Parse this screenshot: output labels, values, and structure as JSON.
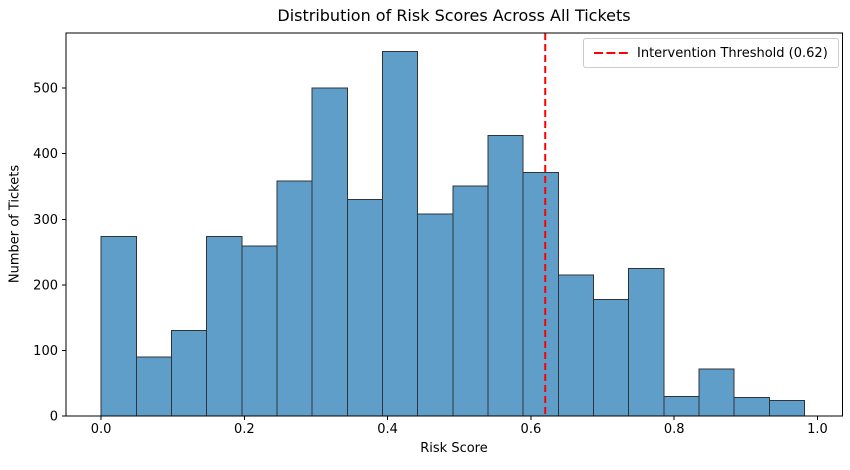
{
  "figure": {
    "title": "Distribution of Risk Scores Across All Tickets",
    "xlabel": "Risk Score",
    "ylabel": "Number of Tickets"
  },
  "legend": {
    "label": "Intervention Threshold (0.62)",
    "line_color": "#ff0000",
    "line_style": "dashed"
  },
  "colors": {
    "bar_fill": "#5f9ec9",
    "bar_edge": "#303438",
    "threshold_line": "#ff0000",
    "axis": "#000000",
    "tick_label": "#000000",
    "background": "#ffffff",
    "legend_border": "#cccccc"
  },
  "chart_data": {
    "type": "bar",
    "subtype": "histogram",
    "title": "Distribution of Risk Scores Across All Tickets",
    "xlabel": "Risk Score",
    "ylabel": "Number of Tickets",
    "bin_start": 0.0,
    "bin_width": 0.0491,
    "counts": [
      274,
      90,
      130,
      274,
      259,
      358,
      500,
      330,
      556,
      308,
      351,
      428,
      371,
      215,
      178,
      225,
      30,
      72,
      28,
      24
    ],
    "threshold": {
      "x": 0.62,
      "label": "Intervention Threshold (0.62)",
      "color": "#ff0000",
      "linestyle": "dashed"
    },
    "xlim": [
      -0.049,
      1.035
    ],
    "ylim": [
      0,
      584
    ],
    "xticks": [
      0.0,
      0.2,
      0.4,
      0.6,
      0.8,
      1.0
    ],
    "xtick_labels": [
      "0.0",
      "0.2",
      "0.4",
      "0.6",
      "0.8",
      "1.0"
    ],
    "yticks": [
      0,
      100,
      200,
      300,
      400,
      500
    ],
    "ytick_labels": [
      "0",
      "100",
      "200",
      "300",
      "400",
      "500"
    ],
    "grid": false,
    "legend_position": "upper right"
  }
}
